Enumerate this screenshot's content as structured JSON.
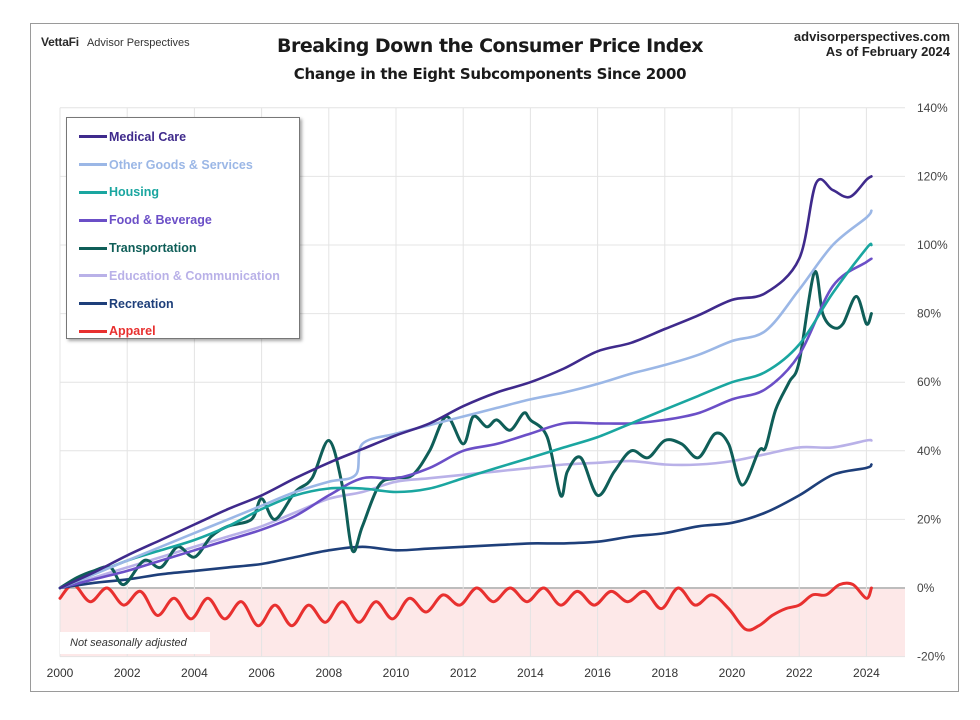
{
  "header": {
    "brand_name": "VettaFi",
    "brand_sub": "Advisor Perspectives",
    "website": "advisorperspectives.com",
    "as_of": "As of February 2024"
  },
  "note": "Not seasonally adjusted",
  "chart_data": {
    "type": "line",
    "title": "Breaking Down the Consumer Price Index",
    "subtitle": "Change in the Eight Subcomponents Since 2000",
    "xlabel": "",
    "ylabel": "",
    "x_range": [
      2000,
      2024.2
    ],
    "ylim": [
      -20,
      140
    ],
    "y_axis_side": "right",
    "y_ticks": [
      140,
      120,
      100,
      80,
      60,
      40,
      20,
      0,
      -20
    ],
    "y_tick_labels": [
      "140%",
      "120%",
      "100%",
      "80%",
      "60%",
      "40%",
      "20%",
      "0%",
      "-20%"
    ],
    "x_ticks": [
      2000,
      2002,
      2004,
      2006,
      2008,
      2010,
      2012,
      2014,
      2016,
      2018,
      2020,
      2022,
      2024
    ],
    "x_tick_labels": [
      "2000",
      "2002",
      "2004",
      "2006",
      "2008",
      "2010",
      "2012",
      "2014",
      "2016",
      "2018",
      "2020",
      "2022",
      "2024"
    ],
    "grid": true,
    "legend_position": "top-left",
    "shaded_region": {
      "from": -20,
      "to": 0,
      "color": "#fde8e8"
    },
    "series": [
      {
        "name": "Medical Care",
        "color": "#3f2a8c",
        "x": [
          2000,
          2001,
          2002,
          2003,
          2004,
          2005,
          2006,
          2007,
          2008,
          2009,
          2010,
          2011,
          2012,
          2013,
          2014,
          2015,
          2016,
          2017,
          2018,
          2019,
          2020,
          2021,
          2022,
          2022.5,
          2023,
          2023.5,
          2024,
          2024.15
        ],
        "y": [
          0,
          4.5,
          9.5,
          14,
          18.5,
          23,
          27,
          32,
          36.5,
          40.5,
          44.5,
          48,
          53,
          57,
          60,
          64,
          69,
          71.5,
          75.5,
          79.5,
          84,
          86,
          96,
          118,
          116,
          114,
          119,
          120
        ]
      },
      {
        "name": "Other Goods & Services",
        "color": "#9bb7e6",
        "x": [
          2000,
          2001,
          2002,
          2003,
          2004,
          2005,
          2006,
          2007,
          2008,
          2008.8,
          2009,
          2010,
          2011,
          2012,
          2013,
          2014,
          2015,
          2016,
          2017,
          2018,
          2019,
          2020,
          2021,
          2022,
          2023,
          2024,
          2024.15
        ],
        "y": [
          0,
          4,
          8,
          12,
          16,
          20,
          24,
          28,
          31,
          33,
          42,
          45,
          47.5,
          50,
          52.5,
          55,
          57,
          59.5,
          62.5,
          65,
          68,
          72,
          75,
          87,
          100,
          108,
          110
        ]
      },
      {
        "name": "Housing",
        "color": "#1aa6a0",
        "x": [
          2000,
          2001,
          2002,
          2003,
          2004,
          2005,
          2006,
          2007,
          2008,
          2009,
          2010,
          2011,
          2012,
          2013,
          2014,
          2015,
          2016,
          2017,
          2018,
          2019,
          2020,
          2021,
          2022,
          2023,
          2024,
          2024.15
        ],
        "y": [
          0,
          4,
          8,
          11,
          14,
          18,
          23,
          27,
          29,
          29,
          28,
          29,
          32,
          35,
          38,
          41,
          44,
          48,
          52,
          56,
          60,
          63,
          71,
          86,
          99,
          100
        ]
      },
      {
        "name": "Food & Beverage",
        "color": "#6b4fc7",
        "x": [
          2000,
          2001,
          2002,
          2003,
          2004,
          2005,
          2006,
          2007,
          2008,
          2009,
          2010,
          2011,
          2012,
          2013,
          2014,
          2015,
          2016,
          2017,
          2018,
          2019,
          2020,
          2021,
          2022,
          2023,
          2024,
          2024.15
        ],
        "y": [
          0,
          2.5,
          5,
          8,
          11,
          14,
          17,
          21,
          27,
          32,
          32,
          35,
          40,
          42,
          45,
          48,
          48,
          48,
          49,
          51,
          55,
          58,
          68,
          88,
          95,
          96
        ]
      },
      {
        "name": "Transportation",
        "color": "#0f5e58",
        "x": [
          2000,
          2000.5,
          2001,
          2001.5,
          2001.9,
          2002.5,
          2003,
          2003.5,
          2004,
          2004.5,
          2005,
          2005.7,
          2006,
          2006.4,
          2007,
          2007.5,
          2008,
          2008.4,
          2008.7,
          2009,
          2009.5,
          2010,
          2010.5,
          2011,
          2011.5,
          2012,
          2012.3,
          2012.7,
          2013,
          2013.4,
          2013.8,
          2014,
          2014.5,
          2014.9,
          2015.1,
          2015.5,
          2016,
          2016.5,
          2017,
          2017.5,
          2018,
          2018.5,
          2019,
          2019.5,
          2019.9,
          2020.3,
          2020.8,
          2021,
          2021.3,
          2021.7,
          2022,
          2022.45,
          2022.7,
          2023,
          2023.3,
          2023.7,
          2024,
          2024.15
        ],
        "y": [
          0,
          3,
          5,
          6,
          1,
          8,
          6,
          12,
          9,
          15,
          18,
          20,
          26,
          20,
          28,
          32,
          43,
          30,
          11,
          18,
          30,
          32,
          33,
          40,
          50,
          42,
          50,
          47,
          49,
          46,
          51,
          49,
          44,
          27,
          34,
          38,
          27,
          34,
          40,
          38,
          43,
          42,
          38,
          45,
          42,
          30,
          40,
          41,
          52,
          60,
          66,
          92,
          80,
          76,
          77,
          85,
          77,
          80
        ]
      },
      {
        "name": "Education & Communication",
        "color": "#b9b1e8",
        "x": [
          2000,
          2001,
          2002,
          2003,
          2004,
          2005,
          2006,
          2007,
          2008,
          2009,
          2010,
          2011,
          2012,
          2013,
          2014,
          2015,
          2016,
          2017,
          2018,
          2019,
          2020,
          2021,
          2022,
          2023,
          2024,
          2024.15
        ],
        "y": [
          0,
          3,
          6,
          9,
          12,
          15,
          18,
          22,
          26,
          28,
          31,
          32,
          33,
          34,
          35,
          36,
          36.5,
          37,
          36,
          36,
          37,
          39,
          41,
          41,
          43,
          43
        ]
      },
      {
        "name": "Recreation",
        "color": "#1e3f7a",
        "x": [
          2000,
          2001,
          2002,
          2003,
          2004,
          2005,
          2006,
          2007,
          2008,
          2009,
          2010,
          2011,
          2012,
          2013,
          2014,
          2015,
          2016,
          2017,
          2018,
          2019,
          2020,
          2021,
          2022,
          2023,
          2024,
          2024.15
        ],
        "y": [
          0,
          1.5,
          2.5,
          4,
          5,
          6,
          7,
          9,
          11,
          12,
          11,
          11.5,
          12,
          12.5,
          13,
          13,
          13.5,
          15,
          16,
          18,
          19,
          22,
          27,
          33,
          35,
          36
        ]
      },
      {
        "name": "Apparel",
        "color": "#e8302f",
        "x": [
          2000,
          2000.4,
          2000.9,
          2001.4,
          2001.9,
          2002.4,
          2002.9,
          2003.4,
          2003.9,
          2004.4,
          2004.9,
          2005.4,
          2005.9,
          2006.4,
          2006.9,
          2007.4,
          2007.9,
          2008.4,
          2008.9,
          2009.4,
          2009.9,
          2010.4,
          2010.9,
          2011.4,
          2011.9,
          2012.4,
          2012.9,
          2013.4,
          2013.9,
          2014.4,
          2014.9,
          2015.4,
          2015.9,
          2016.4,
          2016.9,
          2017.4,
          2017.9,
          2018.4,
          2018.9,
          2019.4,
          2019.9,
          2020.4,
          2020.8,
          2021.2,
          2021.6,
          2022,
          2022.4,
          2022.8,
          2023.2,
          2023.6,
          2024,
          2024.15
        ],
        "y": [
          -3,
          1,
          -4,
          0,
          -5,
          -1,
          -8,
          -3,
          -9,
          -3,
          -9,
          -4,
          -11,
          -5,
          -11,
          -5,
          -10,
          -4,
          -10,
          -4,
          -9,
          -3,
          -7,
          -2,
          -5,
          0,
          -4,
          0,
          -4,
          0,
          -5,
          -1,
          -5,
          -1,
          -4,
          -1,
          -6,
          0,
          -5,
          -2,
          -6,
          -12,
          -11,
          -8,
          -6,
          -5,
          -2,
          -2,
          1,
          1,
          -3,
          0
        ]
      }
    ]
  }
}
